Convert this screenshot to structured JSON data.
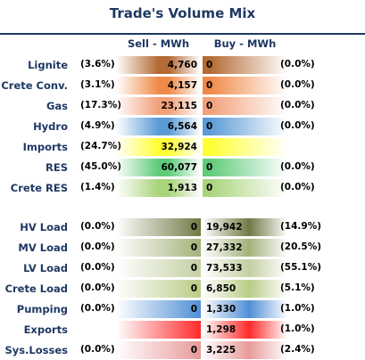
{
  "chart_data": {
    "type": "table",
    "title": "Trade's Volume Mix",
    "columns": [
      "Sell - MWh",
      "Buy - MWh"
    ],
    "rows": [
      {
        "label": "Lignite",
        "sell_pct": "(3.6%)",
        "sell": "4,760",
        "buy": "0",
        "buy_pct": "(0.0%)",
        "color": "#b36a33"
      },
      {
        "label": "Crete Conv.",
        "sell_pct": "(3.1%)",
        "sell": "4,157",
        "buy": "0",
        "buy_pct": "(0.0%)",
        "color": "#f08a48"
      },
      {
        "label": "Gas",
        "sell_pct": "(17.3%)",
        "sell": "23,115",
        "buy": "0",
        "buy_pct": "(0.0%)",
        "color": "#f2a079"
      },
      {
        "label": "Hydro",
        "sell_pct": "(4.9%)",
        "sell": "6,564",
        "buy": "0",
        "buy_pct": "(0.0%)",
        "color": "#5b9bd5"
      },
      {
        "label": "Imports",
        "sell_pct": "(24.7%)",
        "sell": "32,924",
        "buy": "",
        "buy_pct": "",
        "color": "#ffff33"
      },
      {
        "label": "RES",
        "sell_pct": "(45.0%)",
        "sell": "60,077",
        "buy": "0",
        "buy_pct": "(0.0%)",
        "color": "#5fcb7a"
      },
      {
        "label": "Crete RES",
        "sell_pct": "(1.4%)",
        "sell": "1,913",
        "buy": "0",
        "buy_pct": "(0.0%)",
        "color": "#a9d47b"
      },
      {
        "label": "HV Load",
        "sell_pct": "(0.0%)",
        "sell": "0",
        "buy": "19,942",
        "buy_pct": "(14.9%)",
        "color": "#6f7a45"
      },
      {
        "label": "MV Load",
        "sell_pct": "(0.0%)",
        "sell": "0",
        "buy": "27,332",
        "buy_pct": "(20.5%)",
        "color": "#a3b27a"
      },
      {
        "label": "LV Load",
        "sell_pct": "(0.0%)",
        "sell": "0",
        "buy": "73,533",
        "buy_pct": "(55.1%)",
        "color": "#c3cfa3"
      },
      {
        "label": "Crete Load",
        "sell_pct": "(0.0%)",
        "sell": "0",
        "buy": "6,850",
        "buy_pct": "(5.1%)",
        "color": "#b9cc86"
      },
      {
        "label": "Pumping",
        "sell_pct": "(0.0%)",
        "sell": "0",
        "buy": "1,330",
        "buy_pct": "(1.0%)",
        "color": "#4f8fd6"
      },
      {
        "label": "Exports",
        "sell_pct": "",
        "sell": "",
        "buy": "1,298",
        "buy_pct": "(1.0%)",
        "color": "#ff2a2a"
      },
      {
        "label": "Sys.Losses",
        "sell_pct": "(0.0%)",
        "sell": "0",
        "buy": "3,225",
        "buy_pct": "(2.4%)",
        "color": "#e89a9a"
      }
    ]
  }
}
